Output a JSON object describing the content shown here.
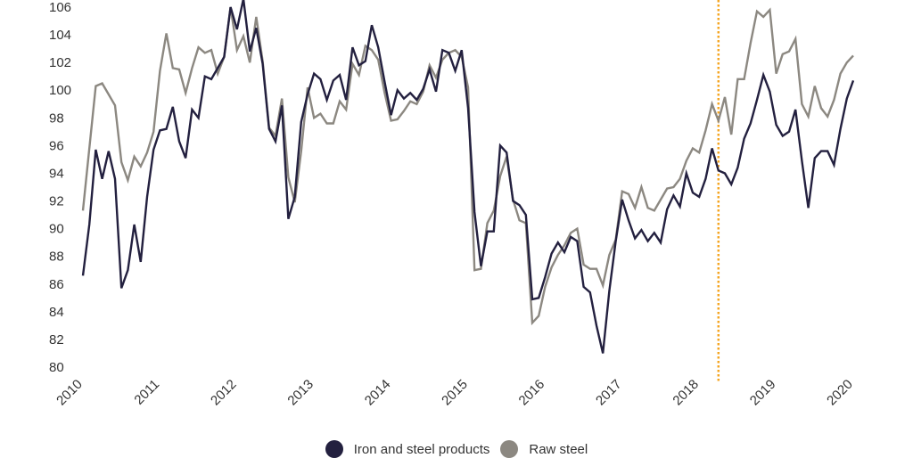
{
  "chart_data": {
    "type": "line",
    "title": "",
    "xlabel": "",
    "ylabel": "",
    "ylim": [
      80,
      106
    ],
    "yticks": [
      80,
      82,
      84,
      86,
      88,
      90,
      92,
      94,
      96,
      98,
      100,
      102,
      104,
      106
    ],
    "xticks": [
      "2010",
      "2011",
      "2012",
      "2013",
      "2014",
      "2015",
      "2016",
      "2017",
      "2018",
      "2019",
      "2020"
    ],
    "xlim": [
      2010,
      2020
    ],
    "grid": false,
    "legend_position": "bottom",
    "x_start": 2010,
    "x_step_months": 1,
    "annotation": {
      "type": "vertical-dotted-line",
      "x": 2018.25,
      "color": "#F5A623"
    },
    "series": [
      {
        "name": "Iron and steel products",
        "color": "#23203F",
        "values": [
          86.6,
          90.3,
          95.7,
          93.6,
          95.6,
          93.6,
          85.7,
          87.0,
          90.3,
          87.6,
          92.3,
          95.7,
          97.1,
          97.2,
          98.8,
          96.3,
          95.1,
          98.6,
          98.0,
          101.0,
          100.8,
          101.6,
          102.4,
          106.0,
          104.4,
          106.6,
          102.8,
          104.5,
          101.9,
          97.2,
          96.3,
          98.9,
          90.7,
          92.3,
          97.7,
          99.7,
          101.2,
          100.8,
          99.3,
          100.7,
          101.1,
          99.3,
          103.1,
          101.8,
          102.1,
          104.7,
          103.1,
          100.6,
          98.2,
          100.0,
          99.4,
          99.8,
          99.3,
          100.1,
          101.5,
          99.9,
          102.9,
          102.7,
          101.4,
          102.9,
          98.7,
          91.2,
          87.3,
          89.8,
          89.8,
          96.0,
          95.5,
          92.0,
          91.7,
          91.0,
          84.9,
          85.0,
          86.5,
          88.2,
          89.0,
          88.3,
          89.4,
          89.1,
          85.8,
          85.4,
          83.0,
          81.0,
          85.5,
          89.1,
          92.1,
          90.6,
          89.3,
          89.9,
          89.1,
          89.7,
          89.0,
          91.4,
          92.4,
          91.6,
          94.0,
          92.6,
          92.3,
          93.6,
          95.8,
          94.2,
          94.0,
          93.2,
          94.4,
          96.5,
          97.6,
          99.3,
          101.1,
          99.9,
          97.5,
          96.7,
          97.0,
          98.6,
          94.9,
          91.5,
          95.1,
          95.6,
          95.6,
          94.6,
          97.2,
          99.4,
          100.7
        ]
      },
      {
        "name": "Raw steel",
        "color": "#8C8881",
        "values": [
          91.3,
          95.8,
          100.3,
          100.5,
          99.7,
          98.9,
          94.8,
          93.5,
          95.2,
          94.5,
          95.5,
          97.0,
          101.4,
          104.1,
          101.6,
          101.5,
          99.8,
          101.6,
          103.1,
          102.7,
          102.9,
          101.2,
          102.4,
          106.0,
          102.9,
          103.9,
          102.0,
          105.3,
          102.1,
          97.3,
          96.7,
          99.4,
          93.7,
          91.9,
          95.6,
          100.2,
          98.0,
          98.3,
          97.6,
          97.6,
          99.2,
          98.6,
          101.9,
          101.1,
          103.2,
          102.9,
          102.2,
          99.8,
          97.8,
          97.9,
          98.5,
          99.2,
          99.0,
          99.9,
          101.8,
          100.9,
          102.2,
          102.7,
          102.9,
          102.4,
          100.2,
          87.0,
          87.1,
          90.4,
          91.3,
          93.8,
          95.2,
          92.1,
          90.6,
          90.4,
          83.2,
          83.7,
          85.8,
          87.2,
          88.1,
          88.8,
          89.7,
          90.0,
          87.4,
          87.1,
          87.1,
          85.9,
          88.1,
          89.2,
          92.7,
          92.5,
          91.5,
          93.0,
          91.5,
          91.3,
          92.1,
          92.9,
          93.0,
          93.6,
          94.9,
          95.8,
          95.5,
          97.1,
          99.0,
          97.8,
          99.5,
          96.8,
          100.8,
          100.8,
          103.4,
          105.7,
          105.3,
          105.8,
          101.2,
          102.6,
          102.8,
          103.7,
          99.0,
          98.1,
          100.3,
          98.7,
          98.1,
          99.3,
          101.2,
          102.0,
          102.5
        ]
      }
    ]
  },
  "legend": {
    "items": [
      {
        "label": "Iron and steel products",
        "color": "#23203F"
      },
      {
        "label": "Raw steel",
        "color": "#8C8881"
      }
    ]
  }
}
